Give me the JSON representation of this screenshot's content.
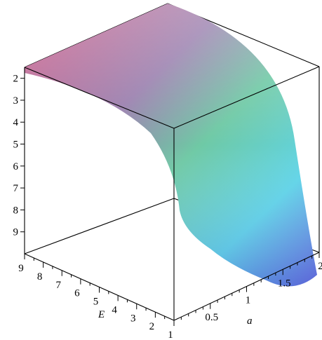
{
  "chart_data": {
    "type": "surface3d",
    "axes": {
      "E": {
        "label": "E",
        "range": [
          1,
          9
        ],
        "ticks": [
          {
            "value": 1,
            "label": "1"
          },
          {
            "value": 2,
            "label": "2"
          },
          {
            "value": 3,
            "label": "3"
          },
          {
            "value": 4,
            "label": "4"
          },
          {
            "value": 5,
            "label": "5"
          },
          {
            "value": 6,
            "label": "6"
          },
          {
            "value": 7,
            "label": "7"
          },
          {
            "value": 8,
            "label": "8"
          },
          {
            "value": 9,
            "label": "9"
          }
        ]
      },
      "a": {
        "label": "a",
        "range": [
          0,
          2
        ],
        "ticks": [
          {
            "value": 0.5,
            "label": "0.5"
          },
          {
            "value": 1,
            "label": "1"
          },
          {
            "value": 1.5,
            "label": "1.5"
          },
          {
            "value": 2,
            "label": "2"
          }
        ]
      },
      "z": {
        "label": "",
        "range": [
          1.5,
          10
        ],
        "ticks": [
          {
            "value": 2,
            "label": "2"
          },
          {
            "value": 3,
            "label": "3"
          },
          {
            "value": 4,
            "label": "4"
          },
          {
            "value": 5,
            "label": "5"
          },
          {
            "value": 6,
            "label": "6"
          },
          {
            "value": 7,
            "label": "7"
          },
          {
            "value": 8,
            "label": "8"
          },
          {
            "value": 9,
            "label": "9"
          }
        ]
      }
    },
    "surface": {
      "colormap": "rainbow-pastel",
      "colors": [
        "#d05a86",
        "#9a7fae",
        "#6fc9a5",
        "#5fd5e8",
        "#6a6ae0"
      ],
      "samples": [
        {
          "E": 9,
          "a": 0,
          "z": 1.5
        },
        {
          "E": 9,
          "a": 1,
          "z": 1.6
        },
        {
          "E": 9,
          "a": 2,
          "z": 3.2
        },
        {
          "E": 5,
          "a": 0,
          "z": 1.5
        },
        {
          "E": 5,
          "a": 1,
          "z": 2.5
        },
        {
          "E": 5,
          "a": 2,
          "z": 6.5
        },
        {
          "E": 1,
          "a": 0,
          "z": 1.5
        },
        {
          "E": 1,
          "a": 0.5,
          "z": 6.5
        },
        {
          "E": 1,
          "a": 1,
          "z": 9.0
        },
        {
          "E": 1,
          "a": 2,
          "z": 9.9
        }
      ]
    },
    "box": true,
    "grid": false,
    "legend": "none"
  }
}
